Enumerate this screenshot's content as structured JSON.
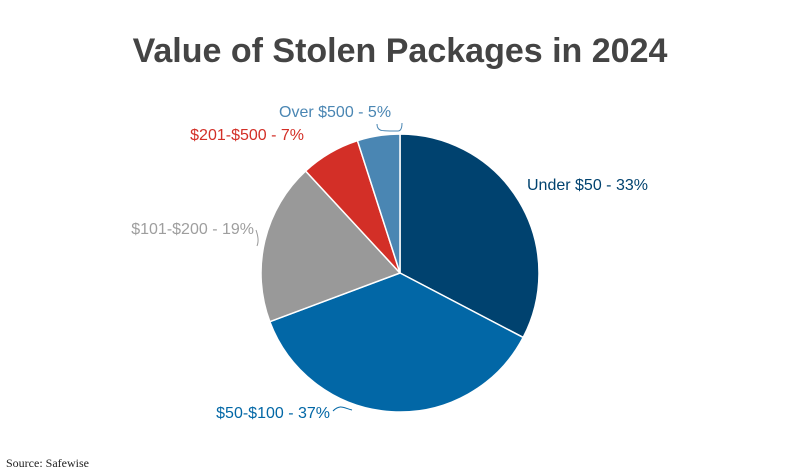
{
  "chart_data": {
    "type": "pie",
    "title": "Value of Stolen Packages in 2024",
    "slices": [
      {
        "label": "Under $50 - 33%",
        "category": "Under $50",
        "value": 33,
        "color": "#00426f"
      },
      {
        "label": "$50-$100 - 37%",
        "category": "$50-$100",
        "value": 37,
        "color": "#0267a6"
      },
      {
        "label": "$101-$200 - 19%",
        "category": "$101-$200",
        "value": 19,
        "color": "#999999"
      },
      {
        "label": "$201-$500 - 7%",
        "category": "$201-$500",
        "value": 7,
        "color": "#d32f27"
      },
      {
        "label": "Over $500 - 5%",
        "category": "Over $500",
        "value": 5,
        "color": "#4a86b3"
      }
    ],
    "start_angle_deg": 0,
    "direction": "clockwise",
    "legend": "none",
    "labels": "outside"
  },
  "source": "Source: Safewise"
}
